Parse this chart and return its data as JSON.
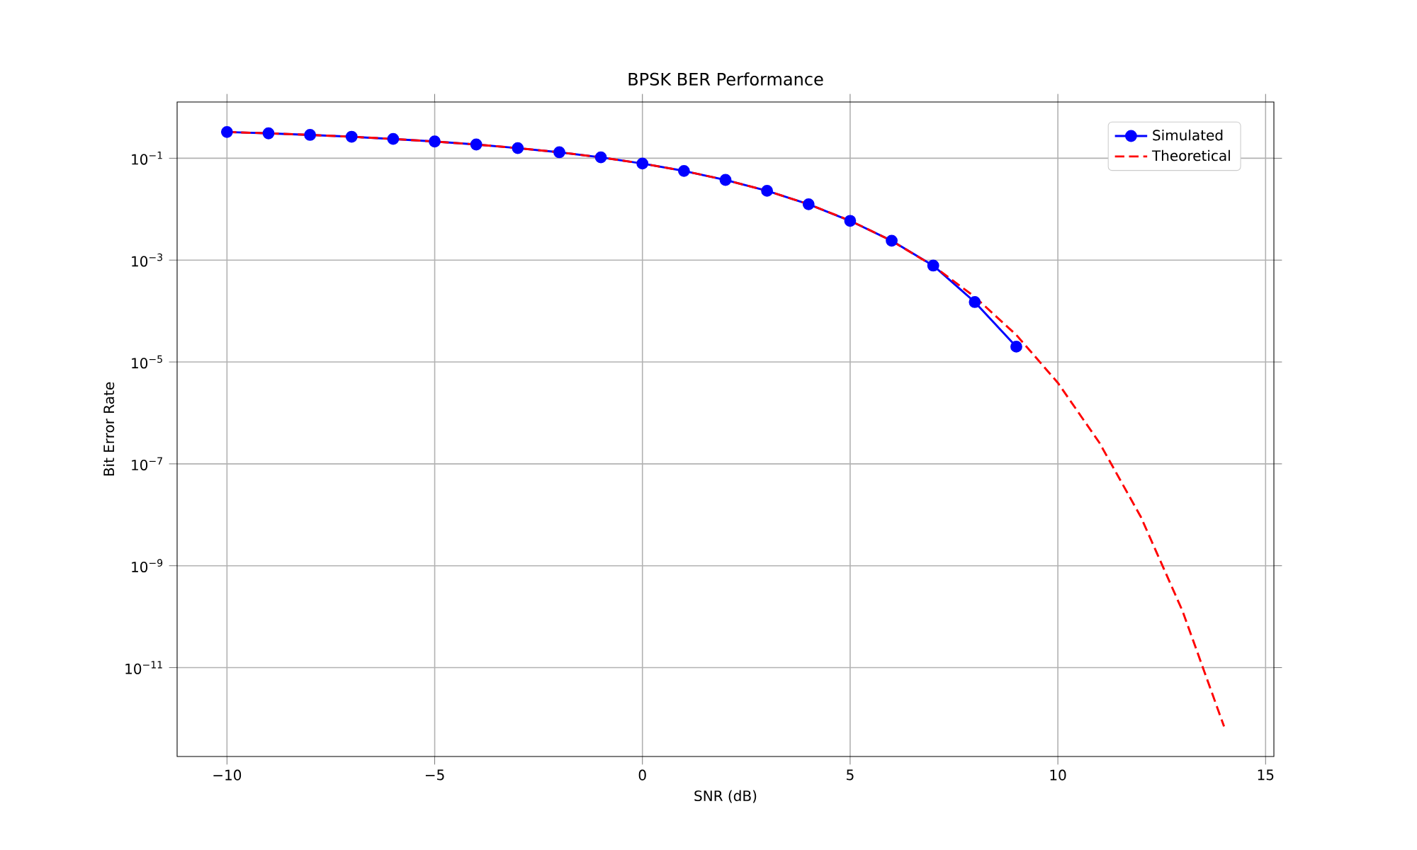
{
  "chart_data": {
    "type": "line",
    "title": "BPSK BER Performance",
    "xlabel": "SNR (dB)",
    "ylabel": "Bit Error Rate",
    "x": [
      -10,
      -9,
      -8,
      -7,
      -6,
      -5,
      -4,
      -3,
      -2,
      -1,
      0,
      1,
      2,
      3,
      4,
      5,
      6,
      7,
      8,
      9,
      10,
      11,
      12,
      13,
      14
    ],
    "series": [
      {
        "name": "Simulated",
        "color": "#0000ff",
        "marker": "circle",
        "line_style": "solid",
        "values": [
          0.327,
          0.308,
          0.287,
          0.264,
          0.239,
          0.213,
          0.186,
          0.158,
          0.131,
          0.104,
          0.0786,
          0.0563,
          0.0375,
          0.0229,
          0.0125,
          0.0059,
          0.0024,
          0.00078,
          0.00015,
          2e-05,
          null,
          null,
          null,
          null,
          null
        ]
      },
      {
        "name": "Theoretical",
        "color": "#ff0000",
        "line_style": "dashed",
        "values": [
          0.327,
          0.308,
          0.287,
          0.264,
          0.239,
          0.213,
          0.186,
          0.158,
          0.131,
          0.104,
          0.0786,
          0.0563,
          0.0375,
          0.0229,
          0.0125,
          0.00595,
          0.00239,
          0.00077,
          0.00019,
          3.4e-05,
          3.9e-06,
          2.6e-07,
          9e-09,
          1.3e-10,
          7e-13
        ]
      }
    ],
    "xlim": [
      -11.2,
      15.2
    ],
    "ylim": [
      1.8e-13,
      1.27
    ],
    "log": "y",
    "xticks": [
      {
        "value": -10,
        "label": "−10"
      },
      {
        "value": -5,
        "label": "−5"
      },
      0,
      5,
      10,
      15
    ],
    "yticks": [
      {
        "value": 1e-11,
        "label": "10$^{−11}$"
      },
      {
        "value": 1e-09,
        "label": "10$^{−9}$"
      },
      {
        "value": 1e-07,
        "label": "10$^{−7}$"
      },
      {
        "value": 1e-05,
        "label": "10$^{−5}$"
      },
      {
        "value": 0.001,
        "label": "10$^{−3}$"
      },
      {
        "value": 0.1,
        "label": "10$^{−1}$"
      }
    ],
    "grid": true,
    "legend": "top right"
  }
}
